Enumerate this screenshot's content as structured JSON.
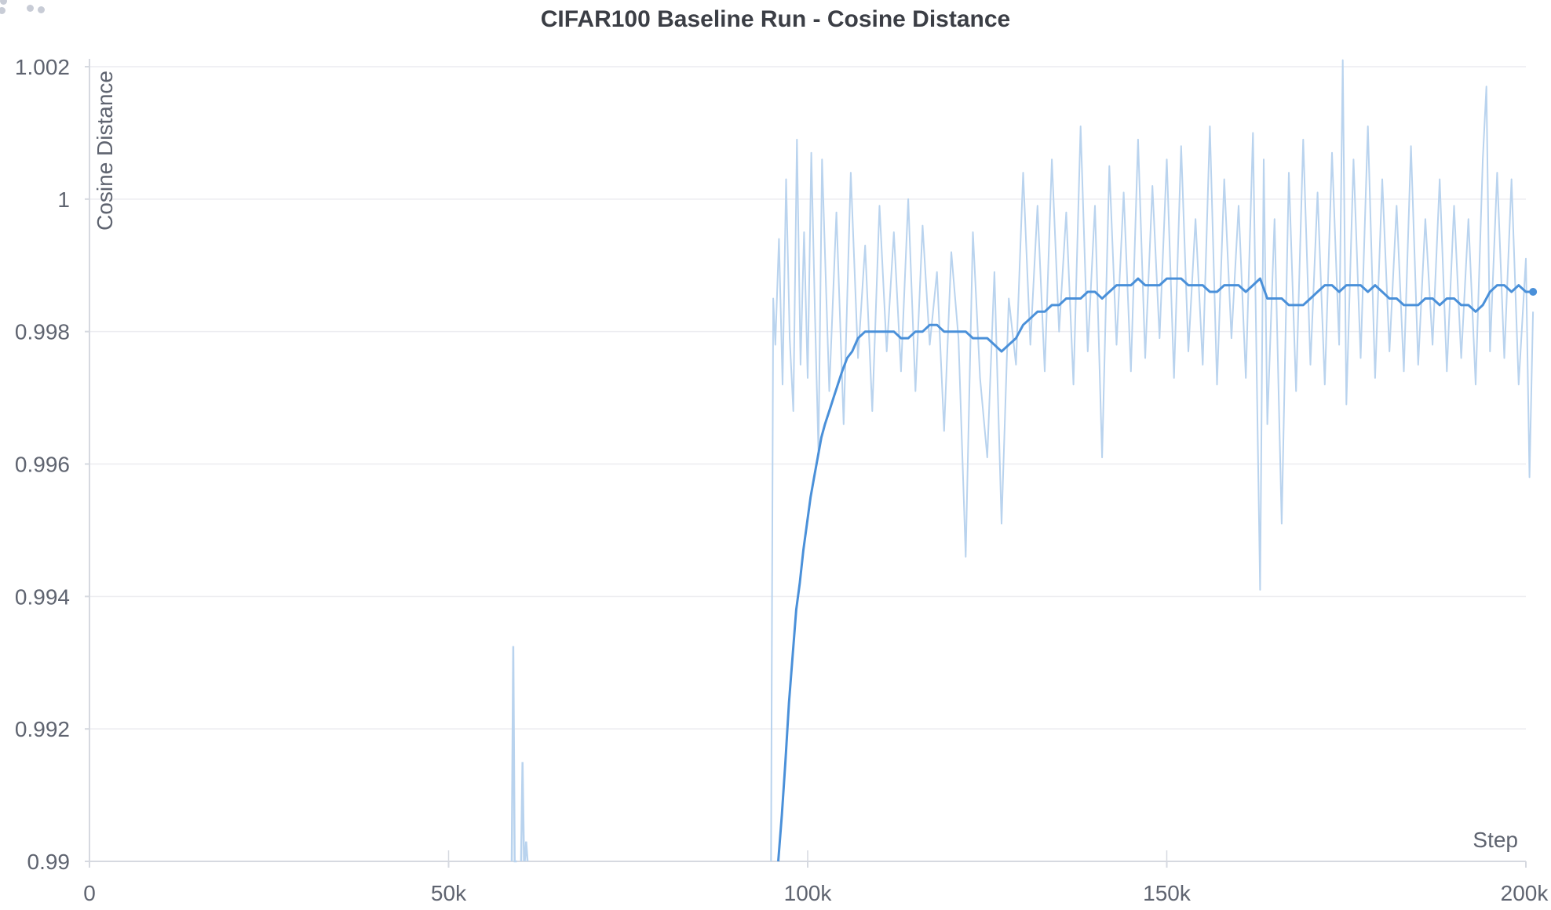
{
  "panel": {
    "drag_handle_icon": "drag-handle-icon"
  },
  "chart_data": {
    "type": "line",
    "title": "CIFAR100 Baseline Run - Cosine Distance",
    "xlabel": "Step",
    "ylabel": "Cosine Distance",
    "xlim": [
      0,
      200000
    ],
    "ylim": [
      0.99,
      1.002
    ],
    "x_ticks": [
      0,
      50000,
      100000,
      150000,
      200000
    ],
    "x_tick_labels": [
      "0",
      "50k",
      "100k",
      "150k",
      "200k"
    ],
    "y_ticks": [
      0.99,
      0.992,
      0.994,
      0.996,
      0.998,
      1.0,
      1.002
    ],
    "y_tick_labels": [
      "0.99",
      "0.992",
      "0.994",
      "0.996",
      "0.998",
      "1",
      "1.002"
    ],
    "grid": true,
    "colors": {
      "smoothed": "#4a90d9",
      "raw": "#b9d3ee",
      "grid": "#ececf0",
      "axis": "#d6d9e0",
      "text": "#5f6470"
    },
    "series": [
      {
        "role": "raw",
        "spikes": [
          {
            "x": [
              58800,
              59000,
              59200,
              59500
            ],
            "y": [
              0.99,
              0.99325,
              0.99,
              0.99
            ]
          },
          {
            "x": [
              60100,
              60300,
              60500
            ],
            "y": [
              0.99,
              0.9915,
              0.99
            ]
          },
          {
            "x": [
              60600,
              60800,
              61000
            ],
            "y": [
              0.99,
              0.9903,
              0.99
            ]
          }
        ],
        "x": [
          94900,
          95200,
          95500,
          96000,
          96500,
          97000,
          97500,
          98000,
          98500,
          99000,
          99500,
          100000,
          100500,
          101000,
          101500,
          102000,
          103000,
          104000,
          105000,
          106000,
          107000,
          108000,
          109000,
          110000,
          111000,
          112000,
          113000,
          114000,
          115000,
          116000,
          117000,
          118000,
          119000,
          120000,
          121000,
          122000,
          123000,
          124000,
          125000,
          126000,
          127000,
          128000,
          129000,
          130000,
          131000,
          132000,
          133000,
          134000,
          135000,
          136000,
          137000,
          138000,
          139000,
          140000,
          141000,
          142000,
          143000,
          144000,
          145000,
          146000,
          147000,
          148000,
          149000,
          150000,
          151000,
          152000,
          153000,
          154000,
          155000,
          156000,
          157000,
          158000,
          159000,
          160000,
          161000,
          162000,
          163000,
          163500,
          164000,
          165000,
          166000,
          167000,
          168000,
          169000,
          170000,
          171000,
          172000,
          173000,
          174000,
          174500,
          175000,
          176000,
          177000,
          178000,
          179000,
          180000,
          181000,
          182000,
          183000,
          184000,
          185000,
          186000,
          187000,
          188000,
          189000,
          190000,
          191000,
          192000,
          193000,
          194000,
          194500,
          195000,
          196000,
          197000,
          198000,
          199000,
          200000,
          200500,
          201000
        ],
        "y": [
          0.99,
          0.9985,
          0.9978,
          0.9994,
          0.9972,
          1.0003,
          0.9979,
          0.9968,
          1.0009,
          0.9975,
          0.9995,
          0.9973,
          1.0007,
          0.9983,
          0.9962,
          1.0006,
          0.9971,
          0.9998,
          0.9966,
          1.0004,
          0.9976,
          0.9993,
          0.9968,
          0.9999,
          0.9977,
          0.9995,
          0.9974,
          1.0,
          0.9971,
          0.9996,
          0.9978,
          0.9989,
          0.9965,
          0.9992,
          0.9979,
          0.9946,
          0.9995,
          0.9973,
          0.9961,
          0.9989,
          0.9951,
          0.9985,
          0.9975,
          1.0004,
          0.9978,
          0.9999,
          0.9974,
          1.0006,
          0.998,
          0.9998,
          0.9972,
          1.0011,
          0.9977,
          0.9999,
          0.9961,
          1.0005,
          0.9978,
          1.0001,
          0.9974,
          1.0009,
          0.9976,
          1.0002,
          0.9979,
          1.0006,
          0.9973,
          1.0008,
          0.9977,
          0.9997,
          0.9975,
          1.0011,
          0.9972,
          1.0003,
          0.9979,
          0.9999,
          0.9973,
          1.001,
          0.9941,
          1.0006,
          0.9966,
          0.9997,
          0.9951,
          1.0004,
          0.9971,
          1.0009,
          0.9975,
          1.0001,
          0.9972,
          1.0007,
          0.9978,
          1.0021,
          0.9969,
          1.0006,
          0.9976,
          1.0011,
          0.9973,
          1.0003,
          0.9977,
          0.9999,
          0.9974,
          1.0008,
          0.9975,
          0.9997,
          0.9978,
          1.0003,
          0.9974,
          0.9999,
          0.9976,
          0.9997,
          0.9972,
          1.0006,
          1.0017,
          0.9977,
          1.0004,
          0.9976,
          1.0003,
          0.9972,
          0.9991,
          0.9958,
          0.9983
        ]
      },
      {
        "role": "smoothed",
        "x": [
          95900,
          96400,
          96900,
          97400,
          97900,
          98400,
          98900,
          99400,
          99900,
          100400,
          100900,
          101400,
          101900,
          102400,
          103000,
          103600,
          104200,
          104800,
          105500,
          106200,
          107000,
          108000,
          109000,
          110000,
          111000,
          112000,
          113000,
          114000,
          115000,
          116000,
          117000,
          118000,
          119000,
          120000,
          121000,
          122000,
          123000,
          124000,
          125000,
          126000,
          127000,
          128000,
          129000,
          130000,
          131000,
          132000,
          133000,
          134000,
          135000,
          136000,
          137000,
          138000,
          139000,
          140000,
          141000,
          142000,
          143000,
          144000,
          145000,
          146000,
          147000,
          148000,
          149000,
          150000,
          151000,
          152000,
          153000,
          154000,
          155000,
          156000,
          157000,
          158000,
          159000,
          160000,
          161000,
          162000,
          163000,
          164000,
          165000,
          166000,
          167000,
          168000,
          169000,
          170000,
          171000,
          172000,
          173000,
          174000,
          175000,
          176000,
          177000,
          178000,
          179000,
          180000,
          181000,
          182000,
          183000,
          184000,
          185000,
          186000,
          187000,
          188000,
          189000,
          190000,
          191000,
          192000,
          193000,
          194000,
          195000,
          196000,
          197000,
          198000,
          199000,
          200000,
          200500,
          201000
        ],
        "y": [
          0.99,
          0.9907,
          0.9915,
          0.9924,
          0.9931,
          0.9938,
          0.9942,
          0.9947,
          0.9951,
          0.9955,
          0.9958,
          0.9961,
          0.9964,
          0.9966,
          0.9968,
          0.997,
          0.9972,
          0.9974,
          0.9976,
          0.9977,
          0.9979,
          0.998,
          0.998,
          0.998,
          0.998,
          0.998,
          0.9979,
          0.9979,
          0.998,
          0.998,
          0.9981,
          0.9981,
          0.998,
          0.998,
          0.998,
          0.998,
          0.9979,
          0.9979,
          0.9979,
          0.9978,
          0.9977,
          0.9978,
          0.9979,
          0.9981,
          0.9982,
          0.9983,
          0.9983,
          0.9984,
          0.9984,
          0.9985,
          0.9985,
          0.9985,
          0.9986,
          0.9986,
          0.9985,
          0.9986,
          0.9987,
          0.9987,
          0.9987,
          0.9988,
          0.9987,
          0.9987,
          0.9987,
          0.9988,
          0.9988,
          0.9988,
          0.9987,
          0.9987,
          0.9987,
          0.9986,
          0.9986,
          0.9987,
          0.9987,
          0.9987,
          0.9986,
          0.9987,
          0.9988,
          0.9985,
          0.9985,
          0.9985,
          0.9984,
          0.9984,
          0.9984,
          0.9985,
          0.9986,
          0.9987,
          0.9987,
          0.9986,
          0.9987,
          0.9987,
          0.9987,
          0.9986,
          0.9987,
          0.9986,
          0.9985,
          0.9985,
          0.9984,
          0.9984,
          0.9984,
          0.9985,
          0.9985,
          0.9984,
          0.9985,
          0.9985,
          0.9984,
          0.9984,
          0.9983,
          0.9984,
          0.9986,
          0.9987,
          0.9987,
          0.9986,
          0.9987,
          0.9986,
          0.9986,
          0.9986
        ]
      }
    ]
  }
}
